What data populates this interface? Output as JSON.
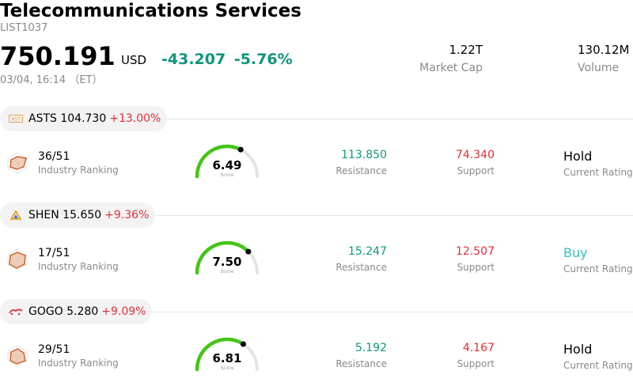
{
  "header": {
    "title": "Telecommunications Services",
    "code": "LIST1037",
    "price": "750.191",
    "currency": "USD",
    "change": "-43.207",
    "change_pct": "-5.76%",
    "datetime": "03/04, 16:14 （ET）"
  },
  "stats": {
    "market_cap_value": "1.22T",
    "market_cap_label": "Market Cap",
    "volume_value": "130.12M",
    "volume_label": "Volume"
  },
  "colors": {
    "positive_green": "#10967a",
    "negative_red": "#e0303a",
    "gauge_green": "#44c517",
    "buy_teal": "#33c3c3"
  },
  "stocks": [
    {
      "ticker_price": "ASTS 104.730",
      "pct": "+13.00%",
      "rank": "36/51",
      "rank_label": "Industry Ranking",
      "score": "6.49",
      "score_fraction": 0.649,
      "score_label": "Score",
      "resistance": "113.850",
      "resistance_label": "Resistance",
      "support": "74.340",
      "support_label": "Support",
      "rating": "Hold",
      "rating_label": "Current Rating",
      "rating_color": "#000000"
    },
    {
      "ticker_price": "SHEN 15.650",
      "pct": "+9.36%",
      "rank": "17/51",
      "rank_label": "Industry Ranking",
      "score": "7.50",
      "score_fraction": 0.75,
      "score_label": "Score",
      "resistance": "15.247",
      "resistance_label": "Resistance",
      "support": "12.507",
      "support_label": "Support",
      "rating": "Buy",
      "rating_label": "Current Rating",
      "rating_color": "#33c3c3"
    },
    {
      "ticker_price": "GOGO 5.280",
      "pct": "+9.09%",
      "rank": "29/51",
      "rank_label": "Industry Ranking",
      "score": "6.81",
      "score_fraction": 0.681,
      "score_label": "Score",
      "resistance": "5.192",
      "resistance_label": "Resistance",
      "support": "4.167",
      "support_label": "Support",
      "rating": "Hold",
      "rating_label": "Current Rating",
      "rating_color": "#000000"
    }
  ]
}
